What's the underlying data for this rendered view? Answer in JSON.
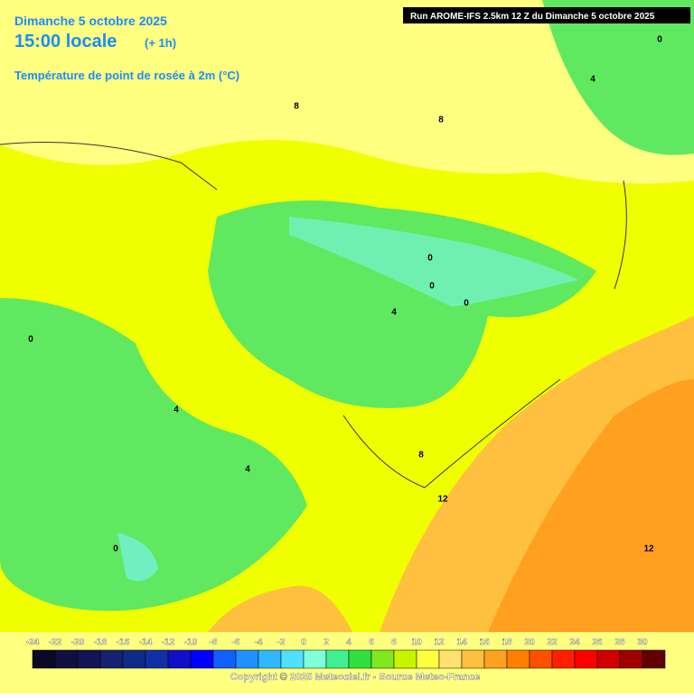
{
  "header": {
    "date": "Dimanche 5 octobre 2025",
    "time": "15:00 locale",
    "offset": "(+ 1h)",
    "parameter": "Température de point de rosée à 2m (°C)",
    "run": "Run AROME-IFS 2.5km 12 Z du Dimanche 5 octobre 2025"
  },
  "contour_labels": [
    "0",
    "4",
    "8",
    "8",
    "0",
    "4",
    "0",
    "0",
    "0",
    "4",
    "4",
    "8",
    "12",
    "12",
    "0"
  ],
  "scale": [
    {
      "value": -24,
      "color": "#0a0a28"
    },
    {
      "value": -22,
      "color": "#101040"
    },
    {
      "value": -20,
      "color": "#141458"
    },
    {
      "value": -18,
      "color": "#182070"
    },
    {
      "value": -16,
      "color": "#102a88"
    },
    {
      "value": -14,
      "color": "#1030a8"
    },
    {
      "value": -12,
      "color": "#1010c8"
    },
    {
      "value": -10,
      "color": "#0000ff"
    },
    {
      "value": -8,
      "color": "#1060ff"
    },
    {
      "value": -6,
      "color": "#2090ff"
    },
    {
      "value": -4,
      "color": "#30b8ff"
    },
    {
      "value": -2,
      "color": "#50e0ff"
    },
    {
      "value": 0,
      "color": "#80ffd8"
    },
    {
      "value": 2,
      "color": "#40f090"
    },
    {
      "value": 4,
      "color": "#30e040"
    },
    {
      "value": 6,
      "color": "#80e820"
    },
    {
      "value": 8,
      "color": "#c8f400"
    },
    {
      "value": 10,
      "color": "#ffff40"
    },
    {
      "value": 12,
      "color": "#ffe070"
    },
    {
      "value": 14,
      "color": "#ffc040"
    },
    {
      "value": 16,
      "color": "#ffa020"
    },
    {
      "value": 18,
      "color": "#ff8000"
    },
    {
      "value": 20,
      "color": "#ff5000"
    },
    {
      "value": 22,
      "color": "#ff2000"
    },
    {
      "value": 24,
      "color": "#ff0000"
    },
    {
      "value": 26,
      "color": "#d00000"
    },
    {
      "value": 28,
      "color": "#a00000"
    },
    {
      "value": 30,
      "color": "#600000"
    }
  ],
  "footer": {
    "copyright": "Copyright © 2025 Meteociel.fr - Source Meteo-France"
  }
}
